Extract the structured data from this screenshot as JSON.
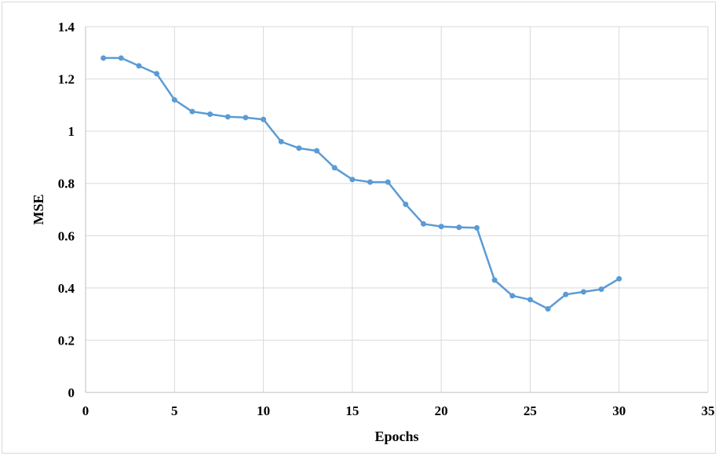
{
  "chart_data": {
    "type": "line",
    "title": "",
    "xlabel": "Epochs",
    "ylabel": "MSE",
    "xlim": [
      0,
      35
    ],
    "ylim": [
      0,
      1.4
    ],
    "x_ticks": [
      "0",
      "5",
      "10",
      "15",
      "20",
      "25",
      "30",
      "35"
    ],
    "y_ticks": [
      "0",
      "0.2",
      "0.4",
      "0.6",
      "0.8",
      "1",
      "1.2",
      "1.4"
    ],
    "grid": true,
    "legend": "none",
    "series": [
      {
        "color": "#5b9bd5",
        "x": [
          1,
          2,
          3,
          4,
          5,
          6,
          7,
          8,
          9,
          10,
          11,
          12,
          13,
          14,
          15,
          16,
          17,
          18,
          19,
          20,
          21,
          22,
          23,
          24,
          25,
          26,
          27,
          28,
          29,
          30
        ],
        "y": [
          1.28,
          1.28,
          1.25,
          1.22,
          1.12,
          1.075,
          1.065,
          1.055,
          1.052,
          1.045,
          0.96,
          0.935,
          0.925,
          0.86,
          0.815,
          0.805,
          0.805,
          0.72,
          0.645,
          0.635,
          0.632,
          0.63,
          0.43,
          0.37,
          0.355,
          0.32,
          0.375,
          0.385,
          0.395,
          0.435
        ]
      }
    ]
  }
}
